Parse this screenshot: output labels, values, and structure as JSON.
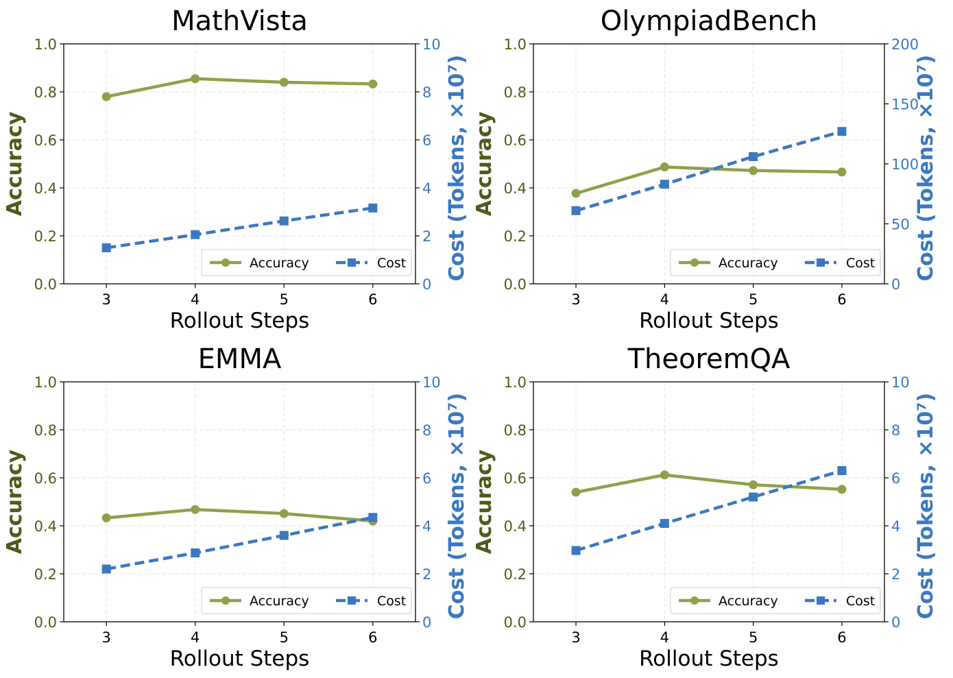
{
  "colors": {
    "accuracy": "#8fa04a",
    "cost": "#3a78c0",
    "left_axis_text": "#4f5a1c",
    "grid": "#e3e3e3"
  },
  "chart_data": [
    {
      "type": "line",
      "title": "MathVista",
      "xlabel": "Rollout Steps",
      "ylabel": "Accuracy",
      "y2label": "Cost (Tokens, ×10⁷)",
      "x": [
        3,
        4,
        5,
        6
      ],
      "ylim": [
        0,
        1.0
      ],
      "yticks": [
        "0.0",
        "0.2",
        "0.4",
        "0.6",
        "0.8",
        "1.0"
      ],
      "y2lim": [
        0,
        10
      ],
      "y2ticks": [
        "0",
        "2",
        "4",
        "6",
        "8",
        "10"
      ],
      "grid": true,
      "legend_position": "lower-right",
      "series": [
        {
          "name": "Accuracy",
          "axis": "left",
          "marker": "circle",
          "style": "solid",
          "values": [
            0.78,
            0.855,
            0.84,
            0.833
          ]
        },
        {
          "name": "Cost",
          "axis": "right",
          "marker": "square",
          "style": "dashed",
          "values": [
            1.5,
            2.05,
            2.62,
            3.16
          ]
        }
      ]
    },
    {
      "type": "line",
      "title": "OlympiadBench",
      "xlabel": "Rollout Steps",
      "ylabel": "Accuracy",
      "y2label": "Cost (Tokens, ×10⁷)",
      "x": [
        3,
        4,
        5,
        6
      ],
      "ylim": [
        0,
        1.0
      ],
      "yticks": [
        "0.0",
        "0.2",
        "0.4",
        "0.6",
        "0.8",
        "1.0"
      ],
      "y2lim": [
        0,
        200
      ],
      "y2ticks": [
        "0",
        "50",
        "100",
        "150",
        "200"
      ],
      "grid": true,
      "legend_position": "lower-right",
      "series": [
        {
          "name": "Accuracy",
          "axis": "left",
          "marker": "circle",
          "style": "solid",
          "values": [
            0.377,
            0.487,
            0.472,
            0.466
          ]
        },
        {
          "name": "Cost",
          "axis": "right",
          "marker": "square",
          "style": "dashed",
          "values": [
            61,
            83,
            106,
            127
          ]
        }
      ]
    },
    {
      "type": "line",
      "title": "EMMA",
      "xlabel": "Rollout Steps",
      "ylabel": "Accuracy",
      "y2label": "Cost (Tokens, ×10⁷)",
      "x": [
        3,
        4,
        5,
        6
      ],
      "ylim": [
        0,
        1.0
      ],
      "yticks": [
        "0.0",
        "0.2",
        "0.4",
        "0.6",
        "0.8",
        "1.0"
      ],
      "y2lim": [
        0,
        10
      ],
      "y2ticks": [
        "0",
        "2",
        "4",
        "6",
        "8",
        "10"
      ],
      "grid": true,
      "legend_position": "lower-right",
      "series": [
        {
          "name": "Accuracy",
          "axis": "left",
          "marker": "circle",
          "style": "solid",
          "values": [
            0.433,
            0.468,
            0.451,
            0.42
          ]
        },
        {
          "name": "Cost",
          "axis": "right",
          "marker": "square",
          "style": "dashed",
          "values": [
            2.2,
            2.87,
            3.6,
            4.35
          ]
        }
      ]
    },
    {
      "type": "line",
      "title": "TheoremQA",
      "xlabel": "Rollout Steps",
      "ylabel": "Accuracy",
      "y2label": "Cost (Tokens, ×10⁷)",
      "x": [
        3,
        4,
        5,
        6
      ],
      "ylim": [
        0,
        1.0
      ],
      "yticks": [
        "0.0",
        "0.2",
        "0.4",
        "0.6",
        "0.8",
        "1.0"
      ],
      "y2lim": [
        0,
        10
      ],
      "y2ticks": [
        "0",
        "2",
        "4",
        "6",
        "8",
        "10"
      ],
      "grid": true,
      "legend_position": "lower-right",
      "series": [
        {
          "name": "Accuracy",
          "axis": "left",
          "marker": "circle",
          "style": "solid",
          "values": [
            0.54,
            0.612,
            0.571,
            0.552
          ]
        },
        {
          "name": "Cost",
          "axis": "right",
          "marker": "square",
          "style": "dashed",
          "values": [
            2.97,
            4.1,
            5.2,
            6.3
          ]
        }
      ]
    }
  ]
}
